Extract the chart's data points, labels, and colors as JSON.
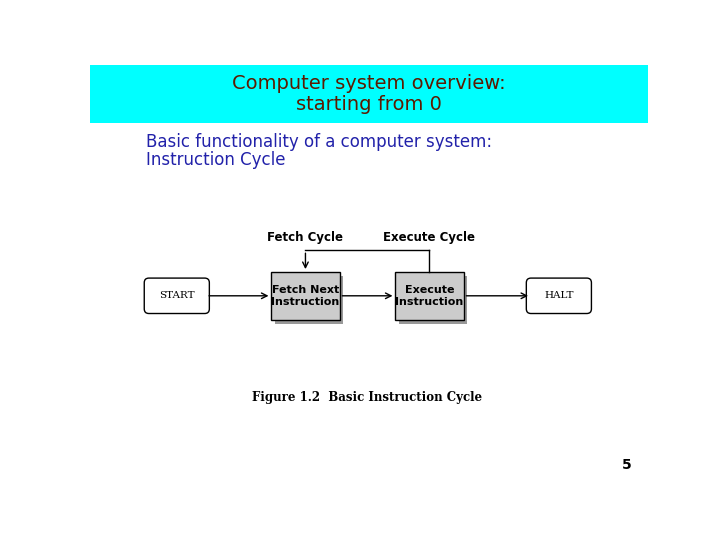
{
  "title_line1": "Computer system overview:",
  "title_line2": "starting from 0",
  "title_bg_color": "#00FFFF",
  "title_text_color": "#5C1A00",
  "subtitle_line1": "Basic functionality of a computer system:",
  "subtitle_line2": "Instruction Cycle",
  "subtitle_color": "#2222AA",
  "bg_color": "#FFFFFF",
  "fetch_label": "Fetch Cycle",
  "execute_label": "Execute Cycle",
  "start_text": "START",
  "fetch_box_text": "Fetch Next\nInstruction",
  "execute_box_text": "Execute\nInstruction",
  "halt_text": "HALT",
  "figure_caption": "Figure 1.2  Basic Instruction Cycle",
  "page_number": "5",
  "box_fill": "#CCCCCC",
  "box_edge": "#000000",
  "shadow_color": "#999999"
}
